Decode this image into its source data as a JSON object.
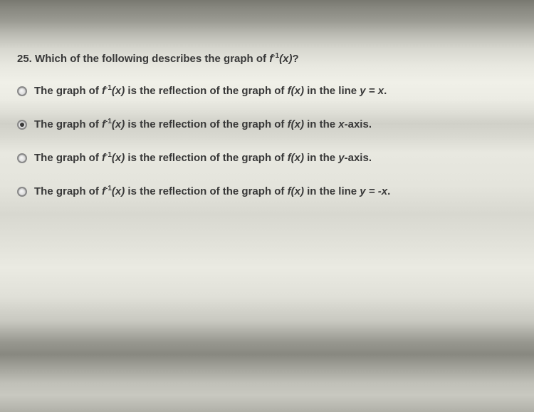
{
  "question": {
    "number": "25.",
    "prefix": "Which of the following describes the graph of ",
    "suffix": "?",
    "notation_f": "f",
    "notation_sup": "-1",
    "notation_arg": "(x)"
  },
  "options": [
    {
      "selected": false,
      "prefix": "The graph of ",
      "mid": " is the reflection of the graph of ",
      "fplain": "f(x)",
      "tail": " in the line ",
      "eq": "y = x",
      "end": "."
    },
    {
      "selected": true,
      "prefix": "The graph of ",
      "mid": " is the reflection of the graph of ",
      "fplain": "f(x)",
      "tail": " in the ",
      "eq": "x",
      "end": "-axis."
    },
    {
      "selected": false,
      "prefix": "The graph of ",
      "mid": " is the reflection of the graph of ",
      "fplain": "f(x)",
      "tail": " in the ",
      "eq": "y",
      "end": "-axis."
    },
    {
      "selected": false,
      "prefix": "The graph of ",
      "mid": " is the reflection of the graph of ",
      "fplain": "f(x)",
      "tail": " in the line ",
      "eq": "y = -x",
      "end": "."
    }
  ],
  "colors": {
    "text": "#383838",
    "radio_border": "#888888",
    "radio_dot": "#383838"
  },
  "typography": {
    "font_family": "Verdana, Geneva, sans-serif",
    "question_fontsize": 15,
    "option_fontsize": 15,
    "font_weight": "bold"
  }
}
